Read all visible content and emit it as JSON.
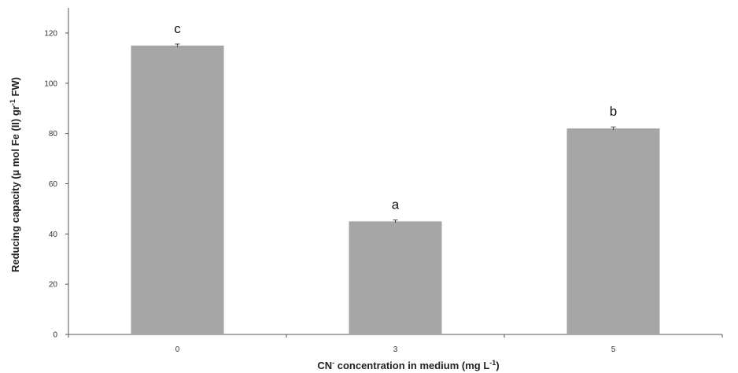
{
  "chart_data": {
    "type": "bar",
    "categories": [
      "0",
      "3",
      "5"
    ],
    "values": [
      115,
      45,
      82
    ],
    "errors": [
      0.6,
      0.6,
      0.6
    ],
    "significance_labels": [
      "c",
      "a",
      "b"
    ],
    "xlabel_main": "CN",
    "xlabel_sup": "-",
    "xlabel_rest": " concentration in medium (mg L",
    "xlabel_unit_sup": "-1",
    "xlabel_end": ")",
    "ylabel_main": "Reducing capacity (µ mol  Fe (II) gr",
    "ylabel_sup": "-1",
    "ylabel_end": " FW)",
    "ylim": [
      0,
      130
    ],
    "yticks": [
      0,
      20,
      40,
      60,
      80,
      100,
      120
    ],
    "grid": false,
    "bar_color": "#a6a6a6",
    "axis_color": "#555555"
  }
}
